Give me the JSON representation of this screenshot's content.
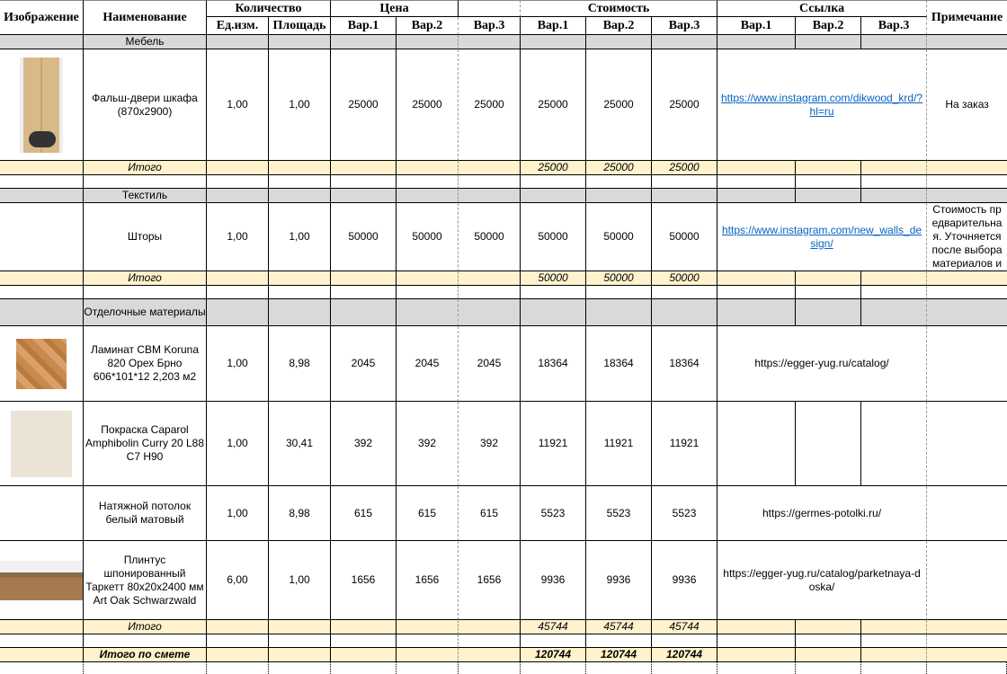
{
  "colors": {
    "category_bg": "#d9d9d9",
    "subtotal_bg": "#fff2cc",
    "link": "#0563c1"
  },
  "header": {
    "image": "Изображение",
    "name": "Наименование",
    "quantity": "Количество",
    "price": "Цена",
    "cost": "Стоимость",
    "link": "Ссылка",
    "note": "Примечание",
    "unit": "Ед.изм.",
    "area": "Площадь",
    "v1": "Вар.1",
    "v2": "Вар.2",
    "v3": "Вар.3"
  },
  "sections": [
    {
      "title": "Мебель",
      "items": [
        {
          "image": "wardrobe-door-photo",
          "name": "Фальш-двери шкафа (870x2900)",
          "unit": "1,00",
          "area": "1,00",
          "price": [
            "25000",
            "25000",
            "25000"
          ],
          "cost": [
            "25000",
            "25000",
            "25000"
          ],
          "link": "https://www.instagram.com/dikwood_krd/?hl=ru",
          "link_style": "hyperlink",
          "note": "На заказ"
        }
      ],
      "subtotal_label": "Итого",
      "subtotal": [
        "25000",
        "25000",
        "25000"
      ]
    },
    {
      "title": "Текстиль",
      "items": [
        {
          "image": "",
          "name": "Шторы",
          "unit": "1,00",
          "area": "1,00",
          "price": [
            "50000",
            "50000",
            "50000"
          ],
          "cost": [
            "50000",
            "50000",
            "50000"
          ],
          "link": "https://www.instagram.com/new_walls_design/",
          "link_style": "hyperlink",
          "note": "Стоимость предварительная. Уточняется после выбора материалов и"
        }
      ],
      "subtotal_label": "Итого",
      "subtotal": [
        "50000",
        "50000",
        "50000"
      ]
    },
    {
      "title": "Отделочные материалы",
      "items": [
        {
          "image": "laminate-photo",
          "name": "Ламинат CBM Koruna 820  Орех Брно 606*101*12 2,203 м2",
          "unit": "1,00",
          "area": "8,98",
          "price": [
            "2045",
            "2045",
            "2045"
          ],
          "cost": [
            "18364",
            "18364",
            "18364"
          ],
          "link": "https://egger-yug.ru/catalog/",
          "link_style": "plain",
          "note": ""
        },
        {
          "image": "paint-swatch",
          "name": "Покраска Caparol Amphibolin Curry 20 L88 C7 H90",
          "unit": "1,00",
          "area": "30,41",
          "price": [
            "392",
            "392",
            "392"
          ],
          "cost": [
            "11921",
            "11921",
            "11921"
          ],
          "link": "",
          "link_style": "none",
          "note": ""
        },
        {
          "image": "",
          "name": "Натяжной потолок белый матовый",
          "unit": "1,00",
          "area": "8,98",
          "price": [
            "615",
            "615",
            "615"
          ],
          "cost": [
            "5523",
            "5523",
            "5523"
          ],
          "link": "https://germes-potolki.ru/",
          "link_style": "plain",
          "note": ""
        },
        {
          "image": "plinth-photo",
          "name": "Плинтус шпонированный Таркетт 80x20x2400 мм Art Oak Schwarzwald",
          "unit": "6,00",
          "area": "1,00",
          "price": [
            "1656",
            "1656",
            "1656"
          ],
          "cost": [
            "9936",
            "9936",
            "9936"
          ],
          "link": "https://egger-yug.ru/catalog/parketnaya-doska/",
          "link_style": "plain",
          "note": ""
        }
      ],
      "subtotal_label": "Итого",
      "subtotal": [
        "45744",
        "45744",
        "45744"
      ]
    }
  ],
  "grand_total": {
    "label": "Итого по смете",
    "values": [
      "120744",
      "120744",
      "120744"
    ]
  }
}
